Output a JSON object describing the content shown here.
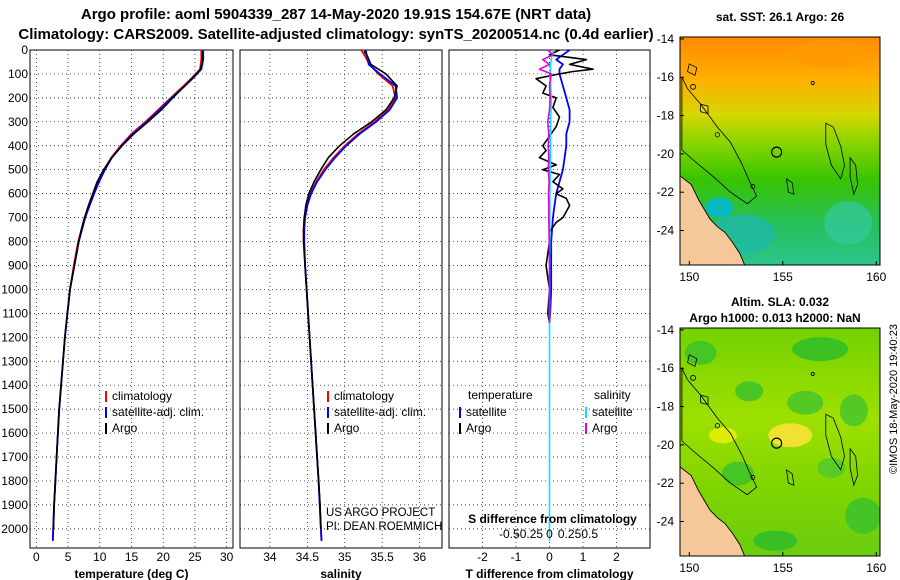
{
  "header": {
    "title_line1": "Argo profile: aoml 5904339_287 14-May-2020 19.91S 154.67E (NRT data)",
    "title_line2": "Climatology: CARS2009. Satellite-adjusted climatology: synTS_20200514.nc (0.4d earlier)"
  },
  "credit": "©IMOS 18-May-2020 19:40:23",
  "colors": {
    "climatology": "#ff0000",
    "satellite": "#0000ff",
    "argo": "#000000",
    "sat_salinity": "#00e5ff",
    "argo_salinity": "#e100e1",
    "land": "#f5c89a"
  },
  "chart_data": [
    {
      "type": "line",
      "id": "temperature",
      "xlabel": "temperature (deg C)",
      "ylabel": "",
      "xlim": [
        -1,
        31
      ],
      "ylim": [
        2080,
        0
      ],
      "xticks": [
        0,
        5,
        10,
        15,
        20,
        25,
        30
      ],
      "yticks": [
        0,
        100,
        200,
        300,
        400,
        500,
        600,
        700,
        800,
        900,
        1000,
        1100,
        1200,
        1300,
        1400,
        1500,
        1600,
        1700,
        1800,
        1900,
        2000
      ],
      "legend": [
        "climatology",
        "satellite-adj. clim.",
        "Argo"
      ],
      "series": [
        {
          "name": "climatology",
          "color": "#ff0000",
          "depth": [
            0,
            40,
            80,
            120,
            150,
            200,
            250,
            300,
            350,
            400,
            450,
            500,
            550,
            600,
            650,
            700,
            750,
            800,
            900,
            1000,
            1100,
            1200,
            1300,
            1400,
            1500,
            1600,
            1700,
            1800,
            1900,
            2050
          ],
          "values": [
            26.0,
            26.0,
            25.8,
            24.4,
            23.2,
            21.2,
            19.2,
            17.2,
            15.0,
            13.3,
            11.8,
            10.7,
            9.8,
            9.0,
            8.3,
            7.6,
            7.1,
            6.6,
            5.9,
            5.3,
            4.9,
            4.5,
            4.2,
            3.9,
            3.6,
            3.4,
            3.2,
            3.0,
            2.8,
            2.6
          ]
        },
        {
          "name": "satellite-adj. clim.",
          "color": "#0000ff",
          "depth": [
            0,
            40,
            80,
            120,
            150,
            200,
            250,
            300,
            350,
            400,
            450,
            500,
            550,
            600,
            650,
            700,
            750,
            800,
            900,
            1000,
            1100,
            1200,
            1300,
            1400,
            1500,
            1600,
            1700,
            1800,
            1900,
            2050
          ],
          "values": [
            26.3,
            26.3,
            26.0,
            24.6,
            23.4,
            21.3,
            19.4,
            17.4,
            15.2,
            13.4,
            11.9,
            10.8,
            9.9,
            9.1,
            8.4,
            7.7,
            7.2,
            6.7,
            6.0,
            5.3,
            4.9,
            4.5,
            4.2,
            3.9,
            3.6,
            3.4,
            3.2,
            3.0,
            2.8,
            2.6
          ]
        },
        {
          "name": "Argo",
          "color": "#000000",
          "depth": [
            5,
            40,
            80,
            120,
            150,
            200,
            250,
            300,
            350,
            400,
            450,
            500,
            550,
            600,
            650,
            700,
            750,
            800,
            900,
            1000,
            1100,
            1200,
            1300,
            1400,
            1500,
            1600,
            1700,
            1800,
            1900,
            2000
          ],
          "values": [
            26.2,
            26.2,
            25.9,
            24.5,
            23.4,
            21.5,
            19.7,
            17.6,
            15.4,
            13.5,
            11.9,
            10.6,
            9.6,
            8.9,
            8.2,
            7.6,
            7.1,
            6.7,
            6.0,
            5.3,
            4.9,
            4.5,
            4.2,
            3.9,
            3.6,
            3.4,
            3.2,
            3.0,
            2.8,
            2.7
          ]
        }
      ]
    },
    {
      "type": "line",
      "id": "salinity",
      "xlabel": "salinity",
      "xlim": [
        33.6,
        36.3
      ],
      "ylim": [
        2080,
        0
      ],
      "xticks": [
        34,
        34.5,
        35,
        35.5,
        36
      ],
      "tick_labels": [
        "34",
        "34.5",
        "35",
        "35.5",
        "36"
      ],
      "legend": [
        "climatology",
        "satellite-adj. clim.",
        "Argo"
      ],
      "annotation_line1": "US ARGO PROJECT",
      "annotation_line2": "PI: DEAN ROEMMICH",
      "series": [
        {
          "name": "climatology",
          "color": "#ff0000",
          "depth": [
            0,
            30,
            60,
            100,
            150,
            200,
            250,
            300,
            350,
            400,
            450,
            500,
            550,
            600,
            650,
            700,
            750,
            800,
            900,
            1000,
            1200,
            1400,
            1600,
            1800,
            2050
          ],
          "values": [
            35.22,
            35.28,
            35.33,
            35.45,
            35.64,
            35.68,
            35.58,
            35.4,
            35.18,
            35.0,
            34.85,
            34.72,
            34.62,
            34.54,
            34.49,
            34.46,
            34.45,
            34.45,
            34.47,
            34.49,
            34.53,
            34.57,
            34.61,
            34.65,
            34.69
          ]
        },
        {
          "name": "satellite-adj. clim.",
          "color": "#0000ff",
          "depth": [
            0,
            30,
            60,
            100,
            150,
            200,
            250,
            300,
            350,
            400,
            450,
            500,
            550,
            600,
            650,
            700,
            750,
            800,
            900,
            1000,
            1200,
            1400,
            1600,
            1800,
            2050
          ],
          "values": [
            35.28,
            35.3,
            35.32,
            35.47,
            35.68,
            35.7,
            35.6,
            35.42,
            35.2,
            35.02,
            34.87,
            34.74,
            34.63,
            34.55,
            34.5,
            34.47,
            34.46,
            34.46,
            34.47,
            34.49,
            34.53,
            34.57,
            34.61,
            34.65,
            34.69
          ]
        },
        {
          "name": "Argo",
          "color": "#000000",
          "depth": [
            5,
            30,
            60,
            100,
            150,
            200,
            250,
            300,
            350,
            400,
            450,
            500,
            550,
            600,
            650,
            700,
            750,
            800,
            900,
            1000,
            1100,
            1200,
            1300,
            1400,
            1500,
            1600,
            1700,
            1800,
            1900,
            2000
          ],
          "values": [
            35.26,
            35.31,
            35.35,
            35.55,
            35.7,
            35.66,
            35.55,
            35.36,
            35.12,
            34.93,
            34.78,
            34.68,
            34.59,
            34.52,
            34.48,
            34.46,
            34.45,
            34.45,
            34.47,
            34.49,
            34.51,
            34.53,
            34.55,
            34.57,
            34.59,
            34.61,
            34.63,
            34.65,
            34.67,
            34.68
          ]
        }
      ]
    },
    {
      "type": "line",
      "id": "differences",
      "xlabel": "T difference from climatology",
      "xlabel_top": "S difference from climatology",
      "xlim": [
        -3,
        3
      ],
      "ylim": [
        2080,
        0
      ],
      "xticks": [
        -2,
        -1,
        0,
        1,
        2
      ],
      "top_ticks": [
        -0.5,
        -0.25,
        0,
        0.25,
        0.5
      ],
      "top_tick_labels": [
        "-0.5",
        "-0.25",
        "0",
        "0.25",
        "0.5"
      ],
      "top_ticks_scale_factor": 2.4,
      "legend_left_title": "temperature",
      "legend_right_title": "salinity",
      "legend": [
        "satellite",
        "Argo",
        "satellite",
        "Argo"
      ],
      "series": [
        {
          "name": "temperature satellite",
          "color": "#0000ff",
          "depth": [
            0,
            20,
            40,
            60,
            80,
            100,
            150,
            200,
            250,
            300,
            350,
            400,
            450,
            500,
            550,
            600,
            650,
            700,
            800,
            900,
            1000,
            1100,
            1140
          ],
          "values": [
            0.6,
            0.4,
            0.2,
            0.4,
            0.3,
            0.3,
            0.4,
            0.5,
            0.6,
            0.6,
            0.5,
            0.5,
            0.45,
            0.4,
            0.3,
            0.2,
            0.15,
            0.1,
            0.05,
            0.05,
            0.05,
            0.02,
            0.0
          ]
        },
        {
          "name": "temperature Argo",
          "color": "#000000",
          "depth": [
            0,
            20,
            40,
            60,
            80,
            90,
            100,
            120,
            150,
            180,
            200,
            240,
            280,
            320,
            360,
            400,
            420,
            450,
            480,
            500,
            520,
            550,
            580,
            600,
            620,
            650,
            700,
            720,
            760,
            800,
            900,
            1000,
            1100,
            1140
          ],
          "values": [
            0.3,
            0.0,
            1.1,
            0.6,
            1.3,
            0.7,
            0.3,
            -0.4,
            -0.1,
            -0.2,
            0.2,
            0.1,
            0.3,
            0.2,
            0.0,
            -0.2,
            -0.1,
            -0.3,
            0.2,
            -0.2,
            0.3,
            0.1,
            0.4,
            0.2,
            0.5,
            0.6,
            0.4,
            0.2,
            0.0,
            0.0,
            -0.1,
            0.0,
            -0.05,
            0.0
          ]
        },
        {
          "name": "salinity satellite",
          "color": "#00e5ff",
          "depth": [
            0,
            40,
            80,
            120,
            160,
            200,
            300,
            400,
            500,
            600,
            700,
            800,
            1000,
            1200,
            1400,
            1600,
            1800,
            2000,
            2050
          ],
          "values": [
            0.12,
            0.05,
            0.02,
            0.03,
            0.04,
            0.05,
            0.04,
            0.03,
            0.02,
            0.01,
            0.01,
            0.01,
            0.0,
            0.0,
            0.0,
            0.0,
            0.0,
            0.0,
            0.0
          ]
        },
        {
          "name": "salinity Argo",
          "color": "#e100e1",
          "depth": [
            0,
            20,
            40,
            60,
            80,
            100,
            150,
            200,
            250,
            300,
            350,
            400,
            450,
            500,
            550,
            600,
            650,
            700,
            800,
            900,
            1000,
            1100,
            1140
          ],
          "values": [
            -0.05,
            0.1,
            -0.2,
            0.0,
            -0.3,
            0.05,
            0.0,
            0.02,
            0.0,
            -0.05,
            -0.02,
            -0.04,
            -0.02,
            -0.04,
            -0.01,
            -0.03,
            -0.02,
            -0.02,
            -0.01,
            0.0,
            0.0,
            0.0,
            0.0
          ]
        }
      ]
    }
  ],
  "maps": [
    {
      "id": "sst-map",
      "title": "sat. SST: 26.1  Argo: 26",
      "title2": "",
      "lat_ticks": [
        "-14",
        "-16",
        "-18",
        "-20",
        "-22",
        "-24"
      ],
      "lon_ticks": [
        "150",
        "155",
        "160"
      ],
      "float_marker": {
        "lon": 154.67,
        "lat": -19.91
      }
    },
    {
      "id": "sla-map",
      "title": "Altim. SLA: 0.032",
      "title2": "Argo h1000: 0.013  h2000: NaN",
      "lat_ticks": [
        "-14",
        "-16",
        "-18",
        "-20",
        "-22",
        "-24"
      ],
      "lon_ticks": [
        "150",
        "155",
        "160"
      ],
      "float_marker": {
        "lon": 154.67,
        "lat": -19.91
      }
    }
  ]
}
